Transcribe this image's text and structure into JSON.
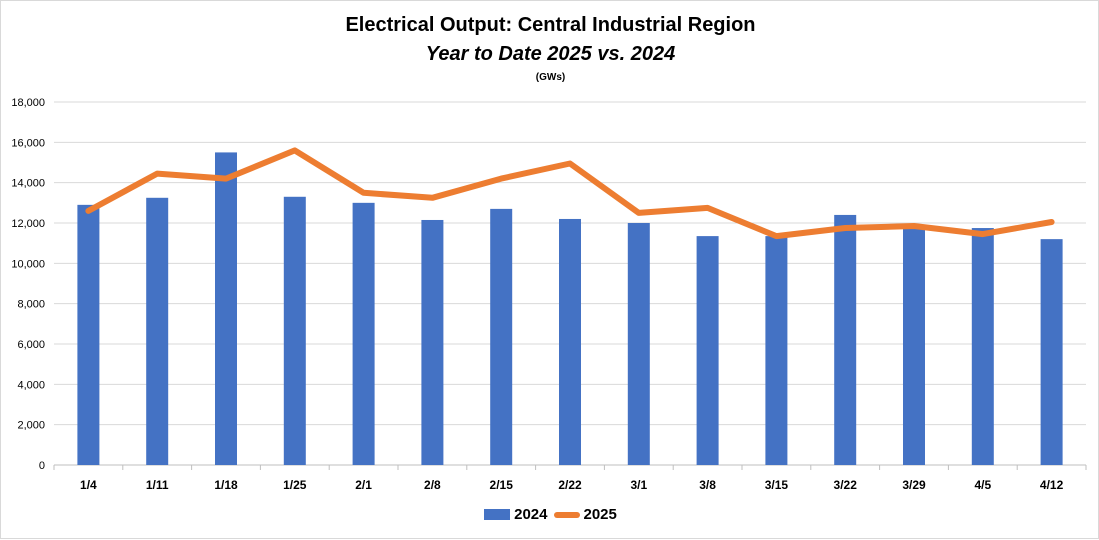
{
  "chart_data": {
    "type": "bar",
    "title": "Electrical Output:  Central Industrial Region",
    "subtitle": "Year to Date 2025 vs. 2024",
    "unit_label": "(GWs)",
    "categories": [
      "1/4",
      "1/11",
      "1/18",
      "1/25",
      "2/1",
      "2/8",
      "2/15",
      "2/22",
      "3/1",
      "3/8",
      "3/15",
      "3/22",
      "3/29",
      "4/5",
      "4/12"
    ],
    "ylim": [
      0,
      18000
    ],
    "yticks": [
      0,
      2000,
      4000,
      6000,
      8000,
      10000,
      12000,
      14000,
      16000,
      18000
    ],
    "ytick_labels": [
      "0",
      "2,000",
      "4,000",
      "6,000",
      "8,000",
      "10,000",
      "12,000",
      "14,000",
      "16,000",
      "18,000"
    ],
    "grid": true,
    "legend_position": "bottom",
    "series": [
      {
        "name": "2024",
        "type": "bar",
        "color": "#4472c4",
        "values": [
          12900,
          13250,
          15500,
          13300,
          13000,
          12150,
          12700,
          12200,
          12000,
          11350,
          11350,
          12400,
          11800,
          11750,
          11200
        ]
      },
      {
        "name": "2025",
        "type": "line",
        "color": "#ed7d31",
        "values": [
          12600,
          14450,
          14200,
          15600,
          13500,
          13250,
          14200,
          14950,
          12500,
          12750,
          11350,
          11750,
          11850,
          11450,
          12050
        ]
      }
    ]
  }
}
